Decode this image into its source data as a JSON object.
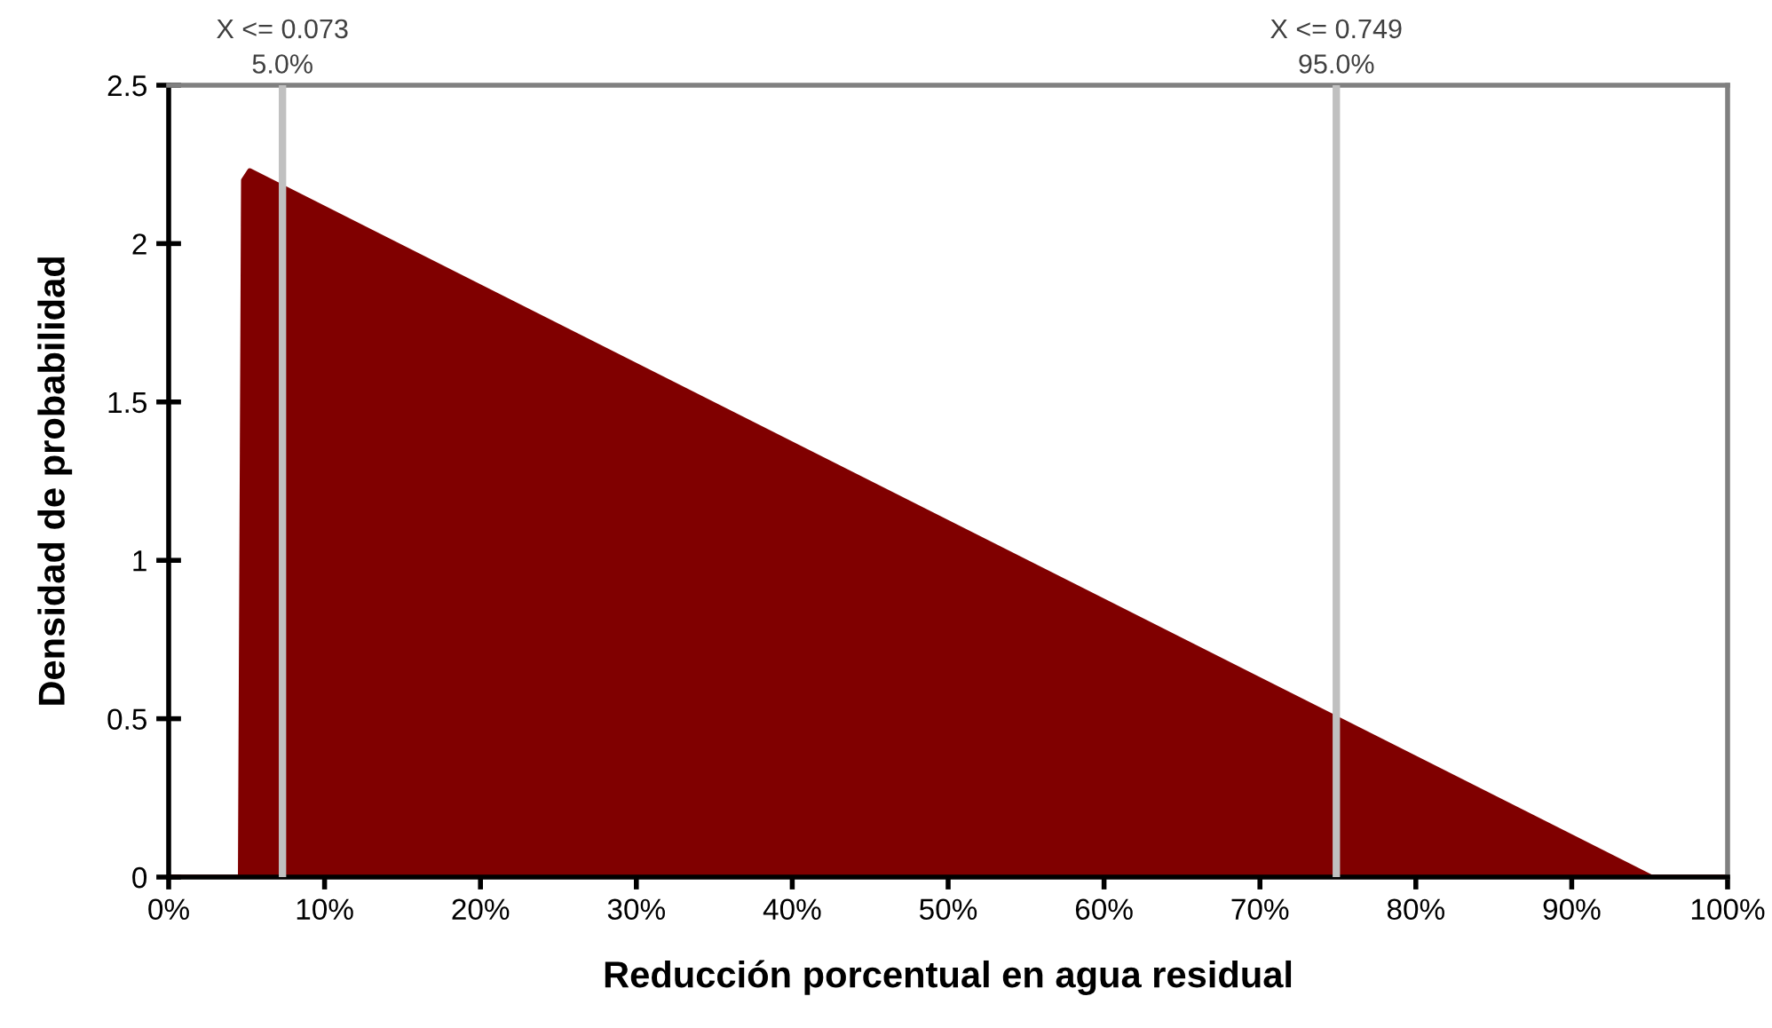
{
  "chart_data": {
    "type": "area",
    "xlabel": "Reducción porcentual en agua residual",
    "ylabel": "Densidad de probabilidad",
    "x": [
      0,
      0.046,
      0.048,
      0.052,
      0.951,
      1.0
    ],
    "series": [
      {
        "color": "#800000",
        "values": [
          0,
          0,
          2.2,
          2.23,
          0,
          0
        ]
      }
    ],
    "xlim": [
      0,
      1
    ],
    "xticks": [
      {
        "value": 0,
        "label": "0%"
      },
      {
        "value": 0.1,
        "label": "10%"
      },
      {
        "value": 0.2,
        "label": "20%"
      },
      {
        "value": 0.3,
        "label": "30%"
      },
      {
        "value": 0.4,
        "label": "40%"
      },
      {
        "value": 0.5,
        "label": "50%"
      },
      {
        "value": 0.6,
        "label": "60%"
      },
      {
        "value": 0.7,
        "label": "70%"
      },
      {
        "value": 0.8,
        "label": "80%"
      },
      {
        "value": 0.9,
        "label": "90%"
      },
      {
        "value": 1.0,
        "label": "100%"
      }
    ],
    "ylim": [
      0,
      2.5
    ],
    "yticks": [
      0,
      0.5,
      1,
      1.5,
      2,
      2.5
    ],
    "ref_lines": [
      {
        "axis": "x",
        "value": 0.073,
        "label": "X <= 0.073\n5.0%",
        "color": "#c0c0c0"
      },
      {
        "axis": "x",
        "value": 0.749,
        "label": "X <= 0.749\n95.0%",
        "color": "#c0c0c0"
      }
    ],
    "grid": false,
    "legend": false
  }
}
